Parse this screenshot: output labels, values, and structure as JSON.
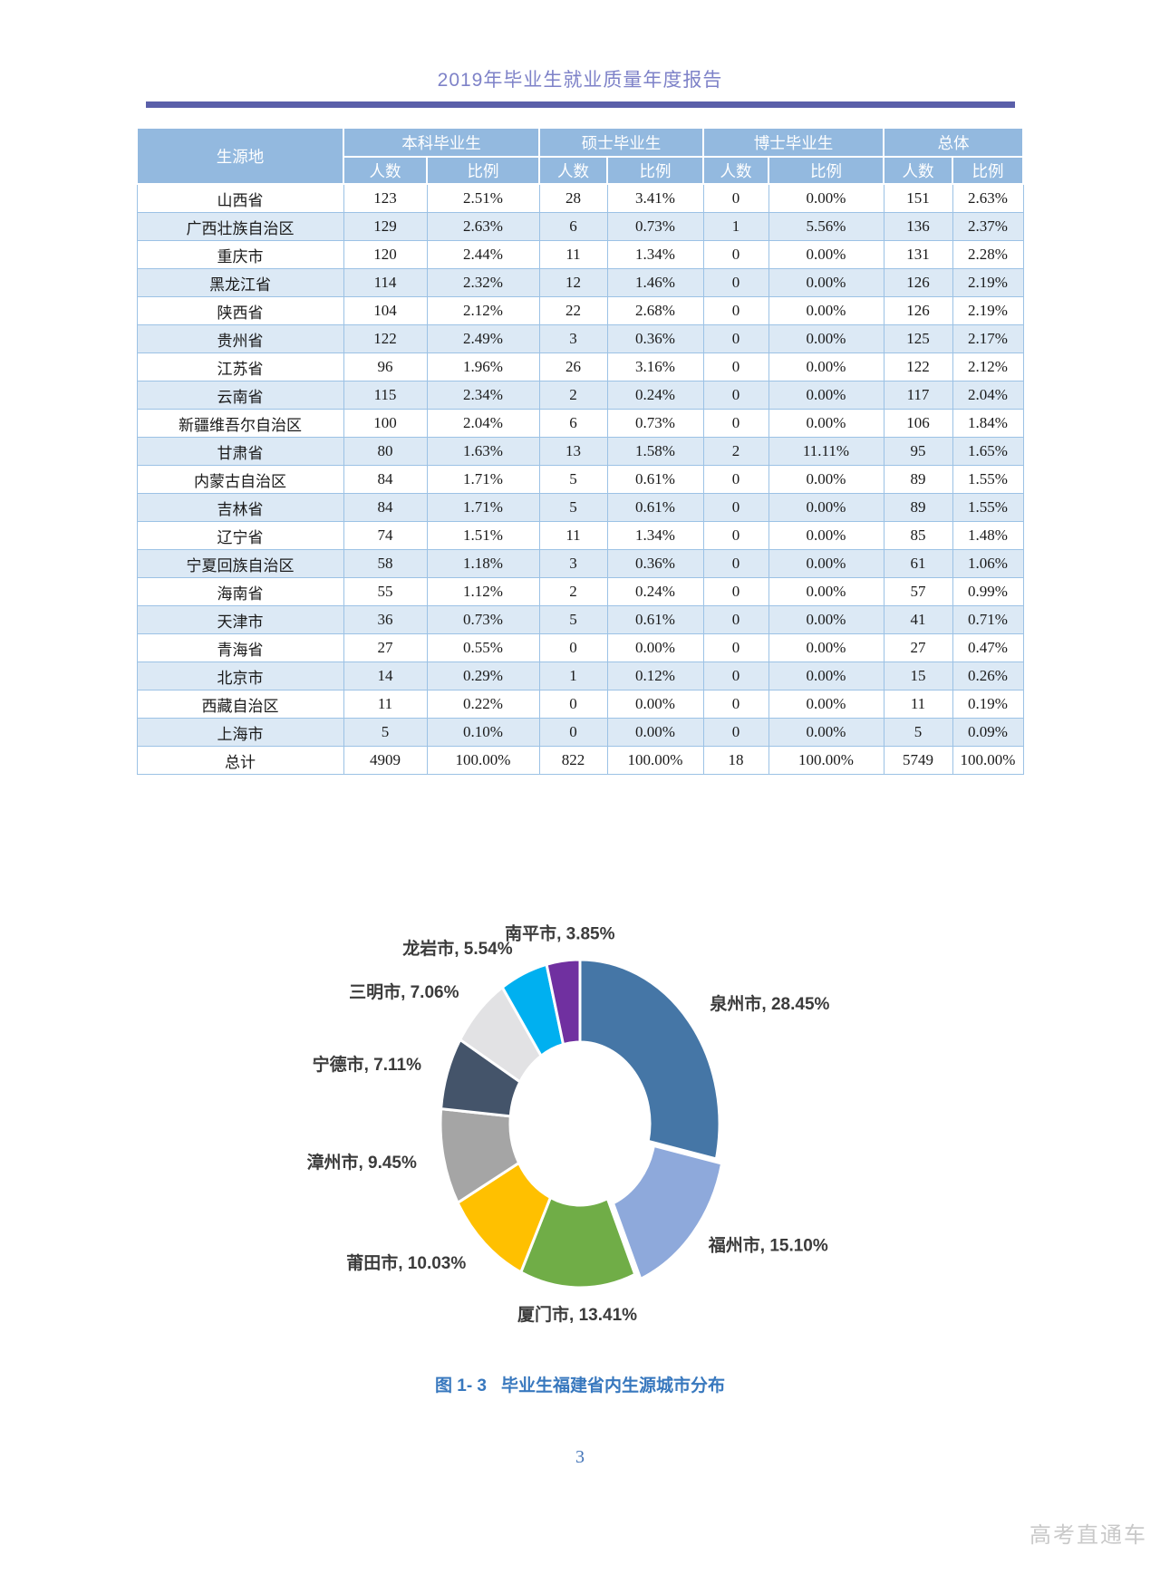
{
  "page": {
    "header_title": "2019年毕业生就业质量年度报告",
    "page_number": "3",
    "watermark": "高考直通车"
  },
  "table": {
    "region_header": "生源地",
    "group_headers": [
      "本科毕业生",
      "硕士毕业生",
      "博士毕业生",
      "总体"
    ],
    "sub_headers": [
      "人数",
      "比例"
    ],
    "rows": [
      [
        "山西省",
        "123",
        "2.51%",
        "28",
        "3.41%",
        "0",
        "0.00%",
        "151",
        "2.63%"
      ],
      [
        "广西壮族自治区",
        "129",
        "2.63%",
        "6",
        "0.73%",
        "1",
        "5.56%",
        "136",
        "2.37%"
      ],
      [
        "重庆市",
        "120",
        "2.44%",
        "11",
        "1.34%",
        "0",
        "0.00%",
        "131",
        "2.28%"
      ],
      [
        "黑龙江省",
        "114",
        "2.32%",
        "12",
        "1.46%",
        "0",
        "0.00%",
        "126",
        "2.19%"
      ],
      [
        "陕西省",
        "104",
        "2.12%",
        "22",
        "2.68%",
        "0",
        "0.00%",
        "126",
        "2.19%"
      ],
      [
        "贵州省",
        "122",
        "2.49%",
        "3",
        "0.36%",
        "0",
        "0.00%",
        "125",
        "2.17%"
      ],
      [
        "江苏省",
        "96",
        "1.96%",
        "26",
        "3.16%",
        "0",
        "0.00%",
        "122",
        "2.12%"
      ],
      [
        "云南省",
        "115",
        "2.34%",
        "2",
        "0.24%",
        "0",
        "0.00%",
        "117",
        "2.04%"
      ],
      [
        "新疆维吾尔自治区",
        "100",
        "2.04%",
        "6",
        "0.73%",
        "0",
        "0.00%",
        "106",
        "1.84%"
      ],
      [
        "甘肃省",
        "80",
        "1.63%",
        "13",
        "1.58%",
        "2",
        "11.11%",
        "95",
        "1.65%"
      ],
      [
        "内蒙古自治区",
        "84",
        "1.71%",
        "5",
        "0.61%",
        "0",
        "0.00%",
        "89",
        "1.55%"
      ],
      [
        "吉林省",
        "84",
        "1.71%",
        "5",
        "0.61%",
        "0",
        "0.00%",
        "89",
        "1.55%"
      ],
      [
        "辽宁省",
        "74",
        "1.51%",
        "11",
        "1.34%",
        "0",
        "0.00%",
        "85",
        "1.48%"
      ],
      [
        "宁夏回族自治区",
        "58",
        "1.18%",
        "3",
        "0.36%",
        "0",
        "0.00%",
        "61",
        "1.06%"
      ],
      [
        "海南省",
        "55",
        "1.12%",
        "2",
        "0.24%",
        "0",
        "0.00%",
        "57",
        "0.99%"
      ],
      [
        "天津市",
        "36",
        "0.73%",
        "5",
        "0.61%",
        "0",
        "0.00%",
        "41",
        "0.71%"
      ],
      [
        "青海省",
        "27",
        "0.55%",
        "0",
        "0.00%",
        "0",
        "0.00%",
        "27",
        "0.47%"
      ],
      [
        "北京市",
        "14",
        "0.29%",
        "1",
        "0.12%",
        "0",
        "0.00%",
        "15",
        "0.26%"
      ],
      [
        "西藏自治区",
        "11",
        "0.22%",
        "0",
        "0.00%",
        "0",
        "0.00%",
        "11",
        "0.19%"
      ],
      [
        "上海市",
        "5",
        "0.10%",
        "0",
        "0.00%",
        "0",
        "0.00%",
        "5",
        "0.09%"
      ],
      [
        "总计",
        "4909",
        "100.00%",
        "822",
        "100.00%",
        "18",
        "100.00%",
        "5749",
        "100.00%"
      ]
    ]
  },
  "chart_data": {
    "type": "pie",
    "subtype": "donut",
    "title": "毕业生福建省内生源城市分布",
    "start_angle_deg": 0,
    "direction": "clockwise",
    "legend_position": "none",
    "label_style": "outside: name, percent",
    "segments": [
      {
        "label": "泉州市",
        "value": 28.45,
        "pct": "28.45%",
        "color": "#4576A6",
        "exploded": false
      },
      {
        "label": "福州市",
        "value": 15.1,
        "pct": "15.10%",
        "color": "#8EA9DB",
        "exploded": true
      },
      {
        "label": "厦门市",
        "value": 13.41,
        "pct": "13.41%",
        "color": "#70AD47",
        "exploded": false
      },
      {
        "label": "莆田市",
        "value": 10.03,
        "pct": "10.03%",
        "color": "#FFC000",
        "exploded": false
      },
      {
        "label": "漳州市",
        "value": 9.45,
        "pct": "9.45%",
        "color": "#A5A5A5",
        "exploded": false
      },
      {
        "label": "宁德市",
        "value": 7.11,
        "pct": "7.11%",
        "color": "#44546A",
        "exploded": false
      },
      {
        "label": "三明市",
        "value": 7.06,
        "pct": "7.06%",
        "color": "#E2E2E4",
        "exploded": false
      },
      {
        "label": "龙岩市",
        "value": 5.54,
        "pct": "5.54%",
        "color": "#00B0F0",
        "exploded": false
      },
      {
        "label": "南平市",
        "value": 3.85,
        "pct": "3.85%",
        "color": "#7030A0",
        "exploded": false
      }
    ]
  },
  "caption": {
    "figure_label": "图 1- 3",
    "title": "毕业生福建省内生源城市分布"
  }
}
